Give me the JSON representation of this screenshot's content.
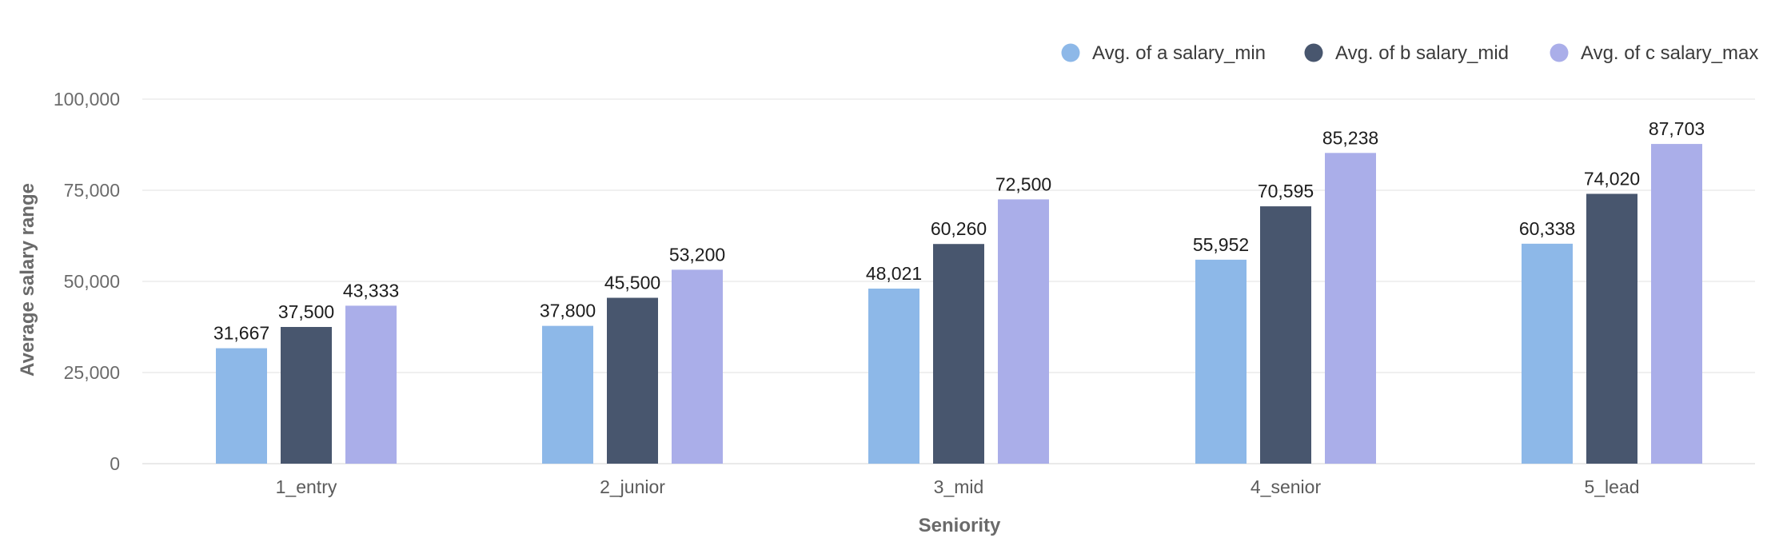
{
  "chart_data": {
    "type": "bar",
    "title": "",
    "xlabel": "Seniority",
    "ylabel": "Average salary range",
    "ylim": [
      0,
      100000
    ],
    "yticks": [
      0,
      25000,
      50000,
      75000,
      100000
    ],
    "ytick_labels": [
      "0",
      "25,000",
      "50,000",
      "75,000",
      "100,000"
    ],
    "grid": true,
    "legend_position": "top-right",
    "categories": [
      "1_entry",
      "2_junior",
      "3_mid",
      "4_senior",
      "5_lead"
    ],
    "series": [
      {
        "name": "Avg. of a salary_min",
        "color": "#8db8e8",
        "values": [
          31667,
          37800,
          48021,
          55952,
          60338
        ],
        "labels": [
          "31,667",
          "37,800",
          "48,021",
          "55,952",
          "60,338"
        ]
      },
      {
        "name": "Avg. of b salary_mid",
        "color": "#48566e",
        "values": [
          37500,
          45500,
          60260,
          70595,
          74020
        ],
        "labels": [
          "37,500",
          "45,500",
          "60,260",
          "70,595",
          "74,020"
        ]
      },
      {
        "name": "Avg. of c salary_max",
        "color": "#aaaee9",
        "values": [
          43333,
          53200,
          72500,
          85238,
          87703
        ],
        "labels": [
          "43,333",
          "53,200",
          "72,500",
          "85,238",
          "87,703"
        ]
      }
    ]
  }
}
